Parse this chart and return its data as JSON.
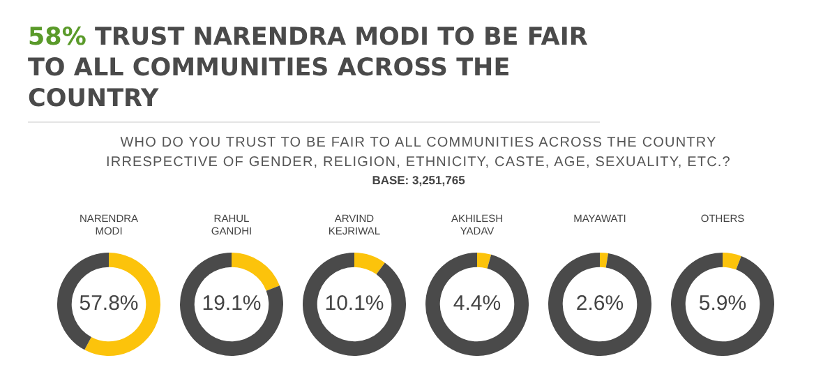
{
  "chart_data": [
    {
      "type": "other",
      "title": "58% TRUST NARENDRA MODI TO BE FAIR TO ALL COMMUNITIES ACROSS THE COUNTRY",
      "subtitle": "WHO DO YOU TRUST TO BE FAIR TO ALL COMMUNITIES ACROSS THE COUNTRY IRRESPECTIVE OF GENDER, RELIGION, ETHNICITY, CASTE, AGE, SEXUALITY, ETC.?",
      "annotations": [
        "BASE: 3,251,765"
      ]
    },
    {
      "type": "donut",
      "title": "NARENDRA MODI",
      "categories": [
        null,
        null
      ],
      "values": [
        57.8,
        42.2
      ],
      "colors": [
        "#fcc30b",
        "#4a4a4a"
      ],
      "value_labels": [
        "57.8%",
        null
      ]
    },
    {
      "type": "donut",
      "title": "RAHUL GANDHI",
      "categories": [
        null,
        null
      ],
      "values": [
        19.1,
        80.9
      ],
      "colors": [
        "#fcc30b",
        "#4a4a4a"
      ],
      "value_labels": [
        "19.1%",
        null
      ]
    },
    {
      "type": "donut",
      "title": "ARVIND KEJRIWAL",
      "categories": [
        null,
        null
      ],
      "values": [
        10.1,
        89.9
      ],
      "colors": [
        "#fcc30b",
        "#4a4a4a"
      ],
      "value_labels": [
        "10.1%",
        null
      ]
    },
    {
      "type": "donut",
      "title": "AKHILESH YADAV",
      "categories": [
        null,
        null
      ],
      "values": [
        4.4,
        95.6
      ],
      "colors": [
        "#fcc30b",
        "#4a4a4a"
      ],
      "value_labels": [
        "4.4%",
        null
      ]
    },
    {
      "type": "donut",
      "title": "MAYAWATI",
      "categories": [
        null,
        null
      ],
      "values": [
        2.6,
        97.4
      ],
      "colors": [
        "#fcc30b",
        "#4a4a4a"
      ],
      "value_labels": [
        "2.6%",
        null
      ]
    },
    {
      "type": "donut",
      "title": "OTHERS",
      "categories": [
        null,
        null
      ],
      "values": [
        5.9,
        94.1
      ],
      "colors": [
        "#fcc30b",
        "#4a4a4a"
      ],
      "value_labels": [
        "5.9%",
        null
      ]
    }
  ]
}
